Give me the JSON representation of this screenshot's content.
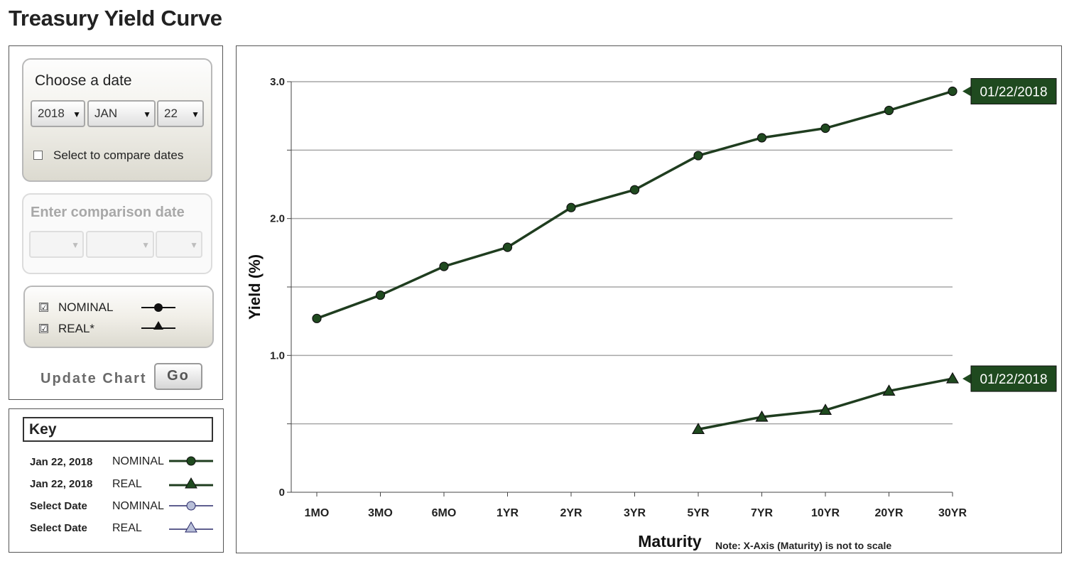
{
  "page_title": "Treasury Yield Curve",
  "date_panel": {
    "heading": "Choose a date",
    "year": "2018",
    "month": "JAN",
    "day": "22",
    "compare_checkbox": {
      "label": "Select to compare dates",
      "checked": false
    }
  },
  "comparison_panel": {
    "heading": "Enter comparison date",
    "year": "",
    "month": "",
    "day": ""
  },
  "series_toggles": [
    {
      "label": "NOMINAL",
      "checked": true,
      "check_mark": "☑",
      "marker": "circle"
    },
    {
      "label": "REAL*",
      "checked": true,
      "check_mark": "☑",
      "marker": "triangle"
    }
  ],
  "update": {
    "label": "Update Chart",
    "button": "Go"
  },
  "key": {
    "title": "Key",
    "rows": [
      {
        "date": "Jan 22, 2018",
        "type": "NOMINAL",
        "marker": "circle",
        "color": "#1f3d1f",
        "fill": "#1f4a1f"
      },
      {
        "date": "Jan 22, 2018",
        "type": "REAL",
        "marker": "triangle",
        "color": "#1f3d1f",
        "fill": "#1f4a1f"
      },
      {
        "date": "Select Date",
        "type": "NOMINAL",
        "marker": "circle",
        "color": "#2a2a6a",
        "fill": "#b8bfd8"
      },
      {
        "date": "Select Date",
        "type": "REAL",
        "marker": "triangle",
        "color": "#2a2a6a",
        "fill": "#b8bfd8"
      }
    ]
  },
  "colors": {
    "series_line": "#1f3d1f",
    "series_fill": "#1f4a1f",
    "flag_bg": "#1f4a1f",
    "grid": "#a6a6a6"
  },
  "chart_data": {
    "type": "line",
    "categories": [
      "1MO",
      "3MO",
      "6MO",
      "1YR",
      "2YR",
      "3YR",
      "5YR",
      "7YR",
      "10YR",
      "20YR",
      "30YR"
    ],
    "series": [
      {
        "name": "NOMINAL",
        "marker": "circle",
        "values": [
          1.27,
          1.44,
          1.65,
          1.79,
          2.08,
          2.21,
          2.46,
          2.59,
          2.66,
          2.79,
          2.93
        ],
        "end_label": "01/22/2018"
      },
      {
        "name": "REAL",
        "marker": "triangle",
        "values": [
          null,
          null,
          null,
          null,
          null,
          null,
          0.46,
          0.55,
          0.6,
          0.74,
          0.83
        ],
        "end_label": "01/22/2018"
      }
    ],
    "ylim": [
      0,
      3.0
    ],
    "yticks": [
      0,
      0.5,
      1.0,
      1.5,
      2.0,
      2.5,
      3.0
    ],
    "ytick_labels": [
      "0",
      "",
      "1.0",
      "",
      "2.0",
      "",
      "3.0"
    ],
    "ylabel": "Yield (%)",
    "xlabel": "Maturity",
    "note": "Note: X-Axis (Maturity) is not to scale",
    "grid": true
  }
}
